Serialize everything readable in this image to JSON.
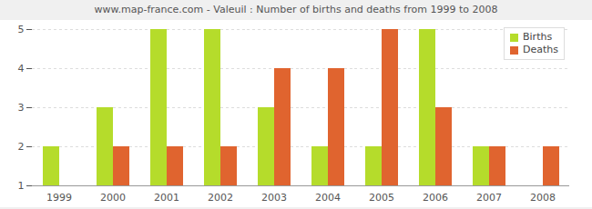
{
  "chart_data": {
    "type": "bar",
    "title": "www.map-france.com - Valeuil : Number of births and deaths from 1999 to 2008",
    "categories": [
      "1999",
      "2000",
      "2001",
      "2002",
      "2003",
      "2004",
      "2005",
      "2006",
      "2007",
      "2008"
    ],
    "series": [
      {
        "name": "Births",
        "color": "#b5dc2b",
        "values": [
          2,
          3,
          5,
          5,
          3,
          2,
          2,
          5,
          2,
          1
        ]
      },
      {
        "name": "Deaths",
        "color": "#e0642f",
        "values": [
          1,
          2,
          2,
          2,
          4,
          4,
          5,
          3,
          2,
          2
        ]
      }
    ],
    "ylim": [
      1,
      5
    ],
    "yticks": [
      1,
      2,
      3,
      4,
      5
    ],
    "grid": true,
    "legend": "top-right"
  }
}
